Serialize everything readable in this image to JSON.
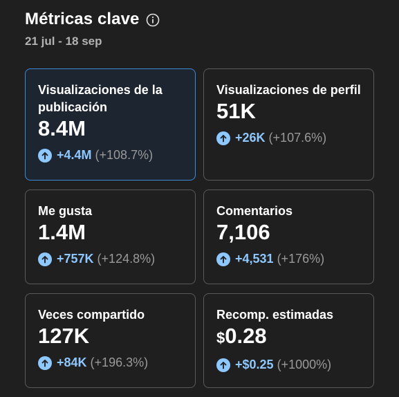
{
  "header": {
    "title": "Métricas clave",
    "date_range": "21 jul - 18 sep"
  },
  "colors": {
    "background": "#1f1f1f",
    "accent": "#8ec8ff",
    "selected_border": "#3d8ad8"
  },
  "cards": [
    {
      "label": "Visualizaciones de la publicación",
      "value": "8.4M",
      "delta": "+4.4M",
      "pct": "(+108.7%)",
      "selected": true
    },
    {
      "label": "Visualizaciones de perfil",
      "value": "51K",
      "delta": "+26K",
      "pct": "(+107.6%)"
    },
    {
      "label": "Me gusta",
      "value": "1.4M",
      "delta": "+757K",
      "pct": "(+124.8%)"
    },
    {
      "label": "Comentarios",
      "value": "7,106",
      "delta": "+4,531",
      "pct": "(+176%)"
    },
    {
      "label": "Veces compartido",
      "value": "127K",
      "delta": "+84K",
      "pct": "(+196.3%)"
    },
    {
      "label": "Recomp. estimadas",
      "currency": "$",
      "value": "0.28",
      "delta": "+$0.25",
      "pct": "(+1000%)"
    }
  ]
}
